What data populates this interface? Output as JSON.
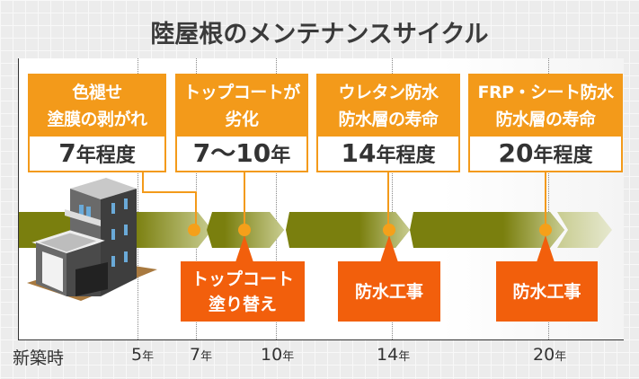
{
  "title": "陸屋根のメンテナンスサイクル",
  "axis": {
    "labels": [
      {
        "num": "新築時",
        "unit": ""
      },
      {
        "num": "5",
        "unit": "年"
      },
      {
        "num": "7",
        "unit": "年"
      },
      {
        "num": "10",
        "unit": "年"
      },
      {
        "num": "14",
        "unit": "年"
      },
      {
        "num": "20",
        "unit": "年"
      }
    ]
  },
  "events": [
    {
      "line1": "色褪せ",
      "line2": "塗膜の剥がれ",
      "num": "7",
      "suffix": "年程度"
    },
    {
      "line1": "トップコートが",
      "line2": "劣化",
      "num": "7〜10",
      "suffix": "年"
    },
    {
      "line1": "ウレタン防水",
      "line2": "防水層の寿命",
      "num": "14",
      "suffix": "年程度"
    },
    {
      "line1": "FRP・シート防水",
      "line2": "防水層の寿命",
      "num": "20",
      "suffix": "年程度"
    }
  ],
  "works": [
    {
      "line1": "トップコート",
      "line2": "塗り替え"
    },
    {
      "line1": "防水工事",
      "line2": ""
    },
    {
      "line1": "防水工事",
      "line2": ""
    }
  ],
  "colors": {
    "orange": "#f39a1a",
    "red": "#f25f0c",
    "band": "#7a7f0e",
    "dot": "#f5a01a"
  }
}
